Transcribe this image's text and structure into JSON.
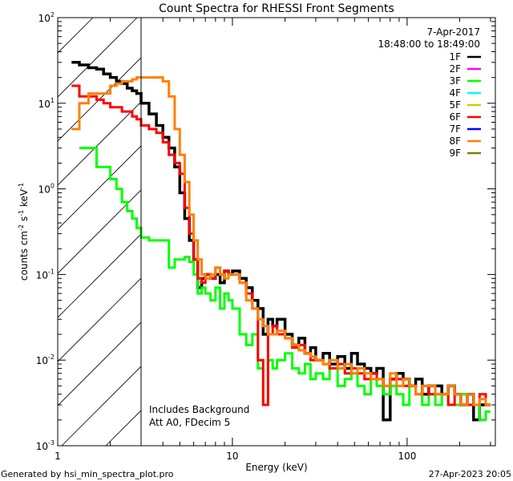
{
  "chart_data": {
    "type": "line",
    "title": "Count Spectra for RHESSI Front Segments",
    "xlabel": "Energy (keV)",
    "ylabel": "counts cm^-2 s^-1 keV^-1",
    "ylabel_parts": {
      "a": "counts cm",
      "b": "-2",
      "c": " s",
      "d": "-1",
      "e": " keV",
      "f": "-1"
    },
    "xscale": "log",
    "yscale": "log",
    "xlim": [
      1,
      320
    ],
    "ylim": [
      0.001,
      100
    ],
    "x_ticks": [
      {
        "v": 1,
        "label": "1"
      },
      {
        "v": 10,
        "label": "10"
      },
      {
        "v": 100,
        "label": "100"
      }
    ],
    "y_ticks": [
      {
        "v": 0.001,
        "exp": "-3"
      },
      {
        "v": 0.01,
        "exp": "-2"
      },
      {
        "v": 0.1,
        "exp": "-1"
      },
      {
        "v": 1,
        "exp": "0"
      },
      {
        "v": 10,
        "exp": "1"
      },
      {
        "v": 100,
        "exp": "2"
      }
    ],
    "y_tick_base": "10",
    "grid": false,
    "excluded_region_keV": [
      1,
      3
    ],
    "date": "7-Apr-2017",
    "time_range": "18:48:00 to 18:49:00",
    "annotations": [
      "Includes Background",
      "Att A0, FDecim 5"
    ],
    "legend_placement": "top-right",
    "legend": [
      {
        "name": "1F",
        "color": "#000000"
      },
      {
        "name": "2F",
        "color": "#ff00ff"
      },
      {
        "name": "3F",
        "color": "#00ff00"
      },
      {
        "name": "4F",
        "color": "#00ffff"
      },
      {
        "name": "5F",
        "color": "#cccc00"
      },
      {
        "name": "6F",
        "color": "#ff0000"
      },
      {
        "name": "7F",
        "color": "#0000ff"
      },
      {
        "name": "8F",
        "color": "#ff8000"
      },
      {
        "name": "9F",
        "color": "#808000"
      }
    ],
    "energy_edges": [
      1.2,
      1.33,
      1.5,
      1.67,
      1.83,
      2.0,
      2.17,
      2.33,
      2.5,
      2.67,
      2.83,
      3.0,
      3.33,
      3.67,
      4.0,
      4.33,
      4.67,
      5.0,
      5.33,
      5.67,
      6.0,
      6.33,
      6.67,
      7.0,
      7.5,
      8,
      8.5,
      9,
      9.5,
      10,
      11,
      12,
      13,
      14,
      15,
      16,
      17,
      18,
      20,
      22,
      24,
      26,
      28,
      30,
      33,
      36,
      40,
      44,
      48,
      52,
      57,
      62,
      67,
      73,
      80,
      87,
      95,
      103,
      112,
      122,
      133,
      145,
      158,
      172,
      187,
      203,
      221,
      240,
      260,
      282,
      300
    ],
    "series": [
      {
        "name": "1F",
        "color": "#000000",
        "values": [
          30,
          28,
          26,
          25,
          22,
          20,
          18,
          17,
          15,
          14,
          13,
          10,
          7.5,
          5.5,
          4,
          3,
          1.8,
          0.9,
          0.45,
          0.25,
          0.15,
          0.07,
          0.09,
          0.1,
          0.09,
          0.1,
          0.08,
          0.11,
          0.1,
          0.11,
          0.09,
          0.07,
          0.05,
          0.04,
          0.02,
          0.03,
          0.025,
          0.03,
          0.02,
          0.015,
          0.018,
          0.012,
          0.014,
          0.01,
          0.012,
          0.009,
          0.011,
          0.008,
          0.012,
          0.009,
          0.008,
          0.007,
          0.008,
          0.002,
          0.006,
          0.007,
          0.006,
          0.005,
          0.006,
          0.004,
          0.005,
          0.005,
          0.004,
          0.005,
          0.004,
          0.003,
          0.004,
          0.002,
          0.003,
          0.003
        ]
      },
      {
        "name": "3F",
        "color": "#00ff00",
        "values": [
          null,
          3,
          3,
          1.8,
          1.8,
          1.3,
          1,
          0.7,
          0.55,
          0.45,
          0.35,
          0.27,
          0.25,
          0.25,
          0.25,
          0.12,
          0.15,
          0.15,
          0.16,
          0.14,
          0.1,
          0.06,
          0.07,
          0.06,
          0.05,
          0.07,
          0.04,
          0.06,
          0.05,
          0.04,
          0.02,
          0.015,
          0.02,
          0.008,
          0.003,
          0.01,
          0.008,
          0.01,
          0.012,
          0.008,
          0.007,
          0.009,
          0.006,
          0.007,
          0.006,
          0.008,
          0.005,
          0.006,
          0.007,
          0.005,
          0.004,
          0.006,
          0.005,
          0.004,
          0.005,
          0.004,
          0.003,
          0.005,
          0.004,
          0.003,
          0.004,
          0.003,
          0.004,
          0.003,
          0.003,
          0.004,
          0.003,
          0.003,
          0.002,
          0.0025
        ]
      },
      {
        "name": "6F",
        "color": "#ff0000",
        "values": [
          16,
          12,
          12,
          11,
          10,
          9,
          9,
          8,
          8,
          7,
          6.5,
          5.5,
          5,
          4.5,
          3.5,
          2.5,
          2,
          1.5,
          0.6,
          0.3,
          0.15,
          0.09,
          0.08,
          0.1,
          0.09,
          0.12,
          0.1,
          0.11,
          0.1,
          0.1,
          0.08,
          0.06,
          0.04,
          0.01,
          0.003,
          0.02,
          0.025,
          0.02,
          0.018,
          0.014,
          0.015,
          0.012,
          0.01,
          0.01,
          0.009,
          0.008,
          0.009,
          0.007,
          0.008,
          0.007,
          0.006,
          0.007,
          0.006,
          0.005,
          0.006,
          0.006,
          0.005,
          0.005,
          0.004,
          0.005,
          0.004,
          0.004,
          0.004,
          0.003,
          0.004,
          0.003,
          0.003,
          0.003,
          0.004,
          0.003
        ]
      },
      {
        "name": "8F",
        "color": "#ff8000",
        "values": [
          5,
          10,
          13,
          13,
          13,
          16,
          17,
          18,
          18,
          19,
          20,
          20,
          20,
          20,
          18,
          12,
          5,
          2.5,
          1.2,
          0.5,
          0.25,
          0.15,
          0.1,
          0.09,
          0.1,
          0.12,
          0.1,
          0.09,
          0.1,
          0.1,
          0.08,
          0.05,
          0.04,
          0.03,
          0.025,
          0.02,
          0.02,
          0.022,
          0.018,
          0.015,
          0.013,
          0.012,
          0.011,
          0.01,
          0.009,
          0.01,
          0.008,
          0.009,
          0.007,
          0.008,
          0.007,
          0.006,
          0.006,
          0.005,
          0.007,
          0.005,
          0.006,
          0.005,
          0.004,
          0.005,
          0.005,
          0.004,
          0.004,
          0.005,
          0.004,
          0.003,
          0.004,
          0.003,
          0.0035,
          0.003
        ]
      }
    ]
  },
  "footer": {
    "generated_by": "Generated by hsi_min_spectra_plot.pro",
    "timestamp": "27-Apr-2023 20:05"
  }
}
